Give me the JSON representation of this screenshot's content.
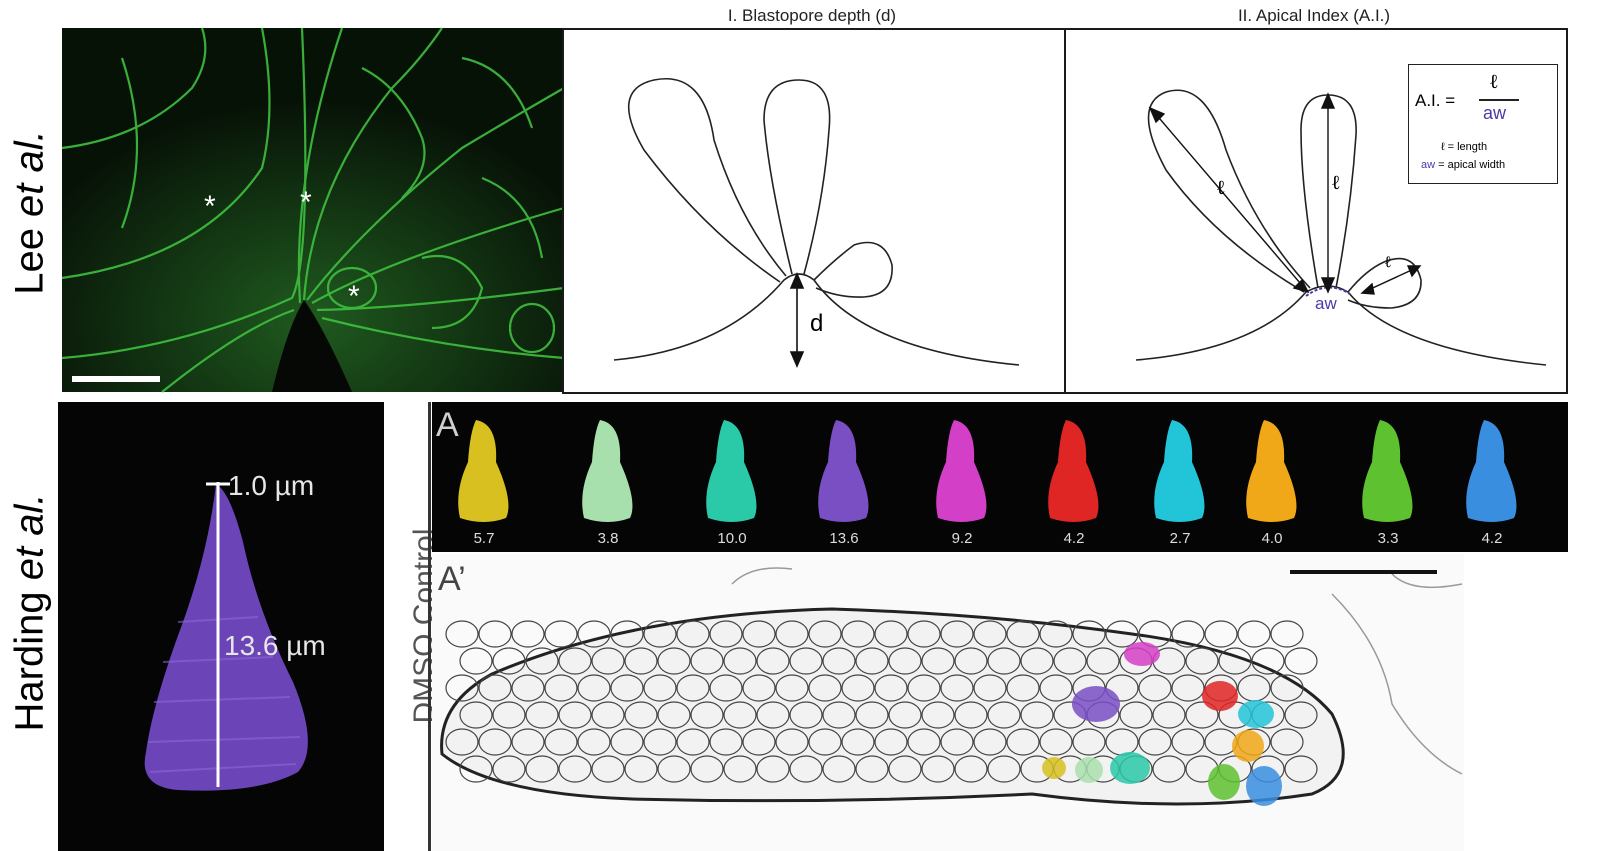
{
  "rows": {
    "top_label_main": "Lee ",
    "top_label_italic": "et al.",
    "bottom_label_main": "Harding ",
    "bottom_label_italic": "et al."
  },
  "panel_i": {
    "title": "I. Blastopore depth (d)",
    "d_label": "d"
  },
  "panel_ii": {
    "title": "II. Apical Index (A.I.)",
    "formula_prefix": "A.I. =",
    "formula_numerator": "ℓ",
    "formula_denominator": "aw",
    "legend_l": "ℓ = length",
    "legend_aw_key": "aw",
    "legend_aw_text": " = apical width",
    "cell_l_label": "ℓ",
    "aw_label": "aw"
  },
  "micrograph": {
    "asterisk": "*"
  },
  "cell3d": {
    "top_label": "1.0 µm",
    "mid_label": "13.6 µm"
  },
  "panel_a": {
    "letter": "A",
    "side_label": "DMSO Control",
    "cells": [
      {
        "value": "5.7",
        "color": "#d8c021"
      },
      {
        "value": "3.8",
        "color": "#a8e0ad"
      },
      {
        "value": "10.0",
        "color": "#2ac9a8"
      },
      {
        "value": "13.6",
        "color": "#7a4fc4"
      },
      {
        "value": "9.2",
        "color": "#d43fc7"
      },
      {
        "value": "4.2",
        "color": "#e02525"
      },
      {
        "value": "2.7",
        "color": "#22c4d8"
      },
      {
        "value": "4.0",
        "color": "#f0a818"
      },
      {
        "value": "3.3",
        "color": "#5ec230"
      },
      {
        "value": "4.2",
        "color": "#3a8ee0"
      }
    ]
  },
  "panel_a_prime": {
    "letter": "A’"
  }
}
